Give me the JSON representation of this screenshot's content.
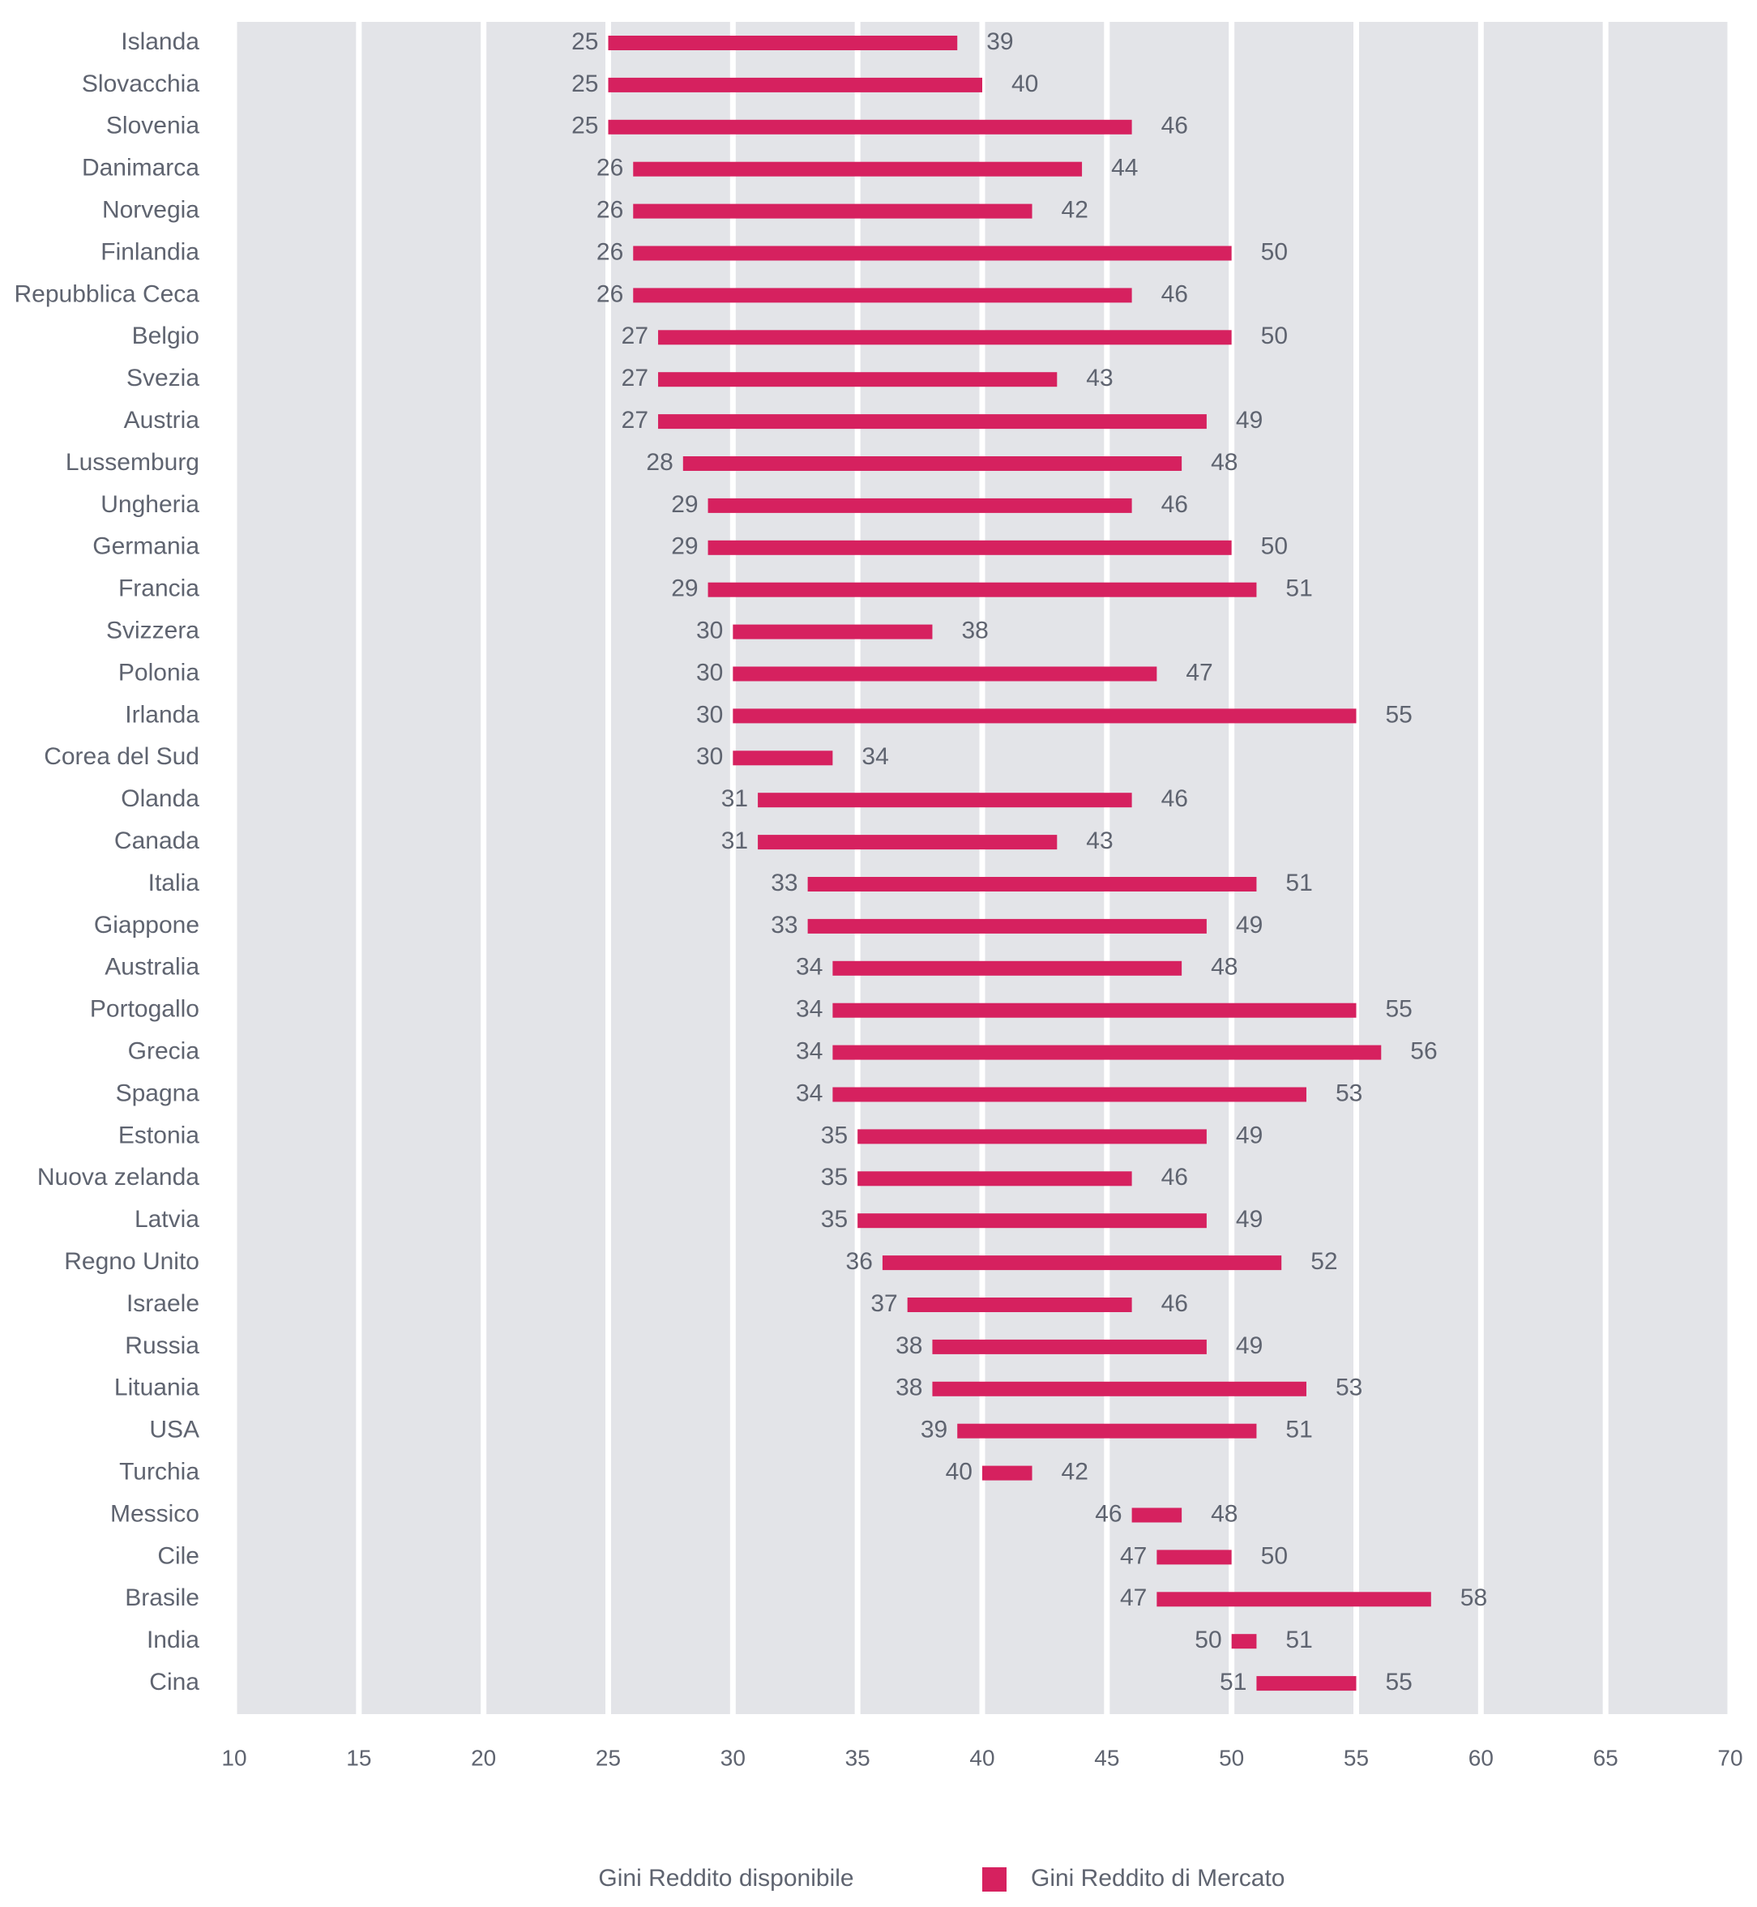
{
  "chart_data": {
    "type": "range-bar",
    "orientation": "horizontal",
    "categories": [
      "Islanda",
      "Slovacchia",
      "Slovenia",
      "Danimarca",
      "Norvegia",
      "Finlandia",
      "Repubblica Ceca",
      "Belgio",
      "Svezia",
      "Austria",
      "Lussemburg",
      "Ungheria",
      "Germania",
      "Francia",
      "Svizzera",
      "Polonia",
      "Irlanda",
      "Corea del Sud",
      "Olanda",
      "Canada",
      "Italia",
      "Giappone",
      "Australia",
      "Portogallo",
      "Grecia",
      "Spagna",
      "Estonia",
      "Nuova zelanda",
      "Latvia",
      "Regno Unito",
      "Israele",
      "Russia",
      "Lituania",
      "USA",
      "Turchia",
      "Messico",
      "Cile",
      "Brasile",
      "India",
      "Cina"
    ],
    "series": [
      {
        "name": "Gini Reddito disponibile",
        "values": [
          25,
          25,
          25,
          26,
          26,
          26,
          26,
          27,
          27,
          27,
          28,
          29,
          29,
          29,
          30,
          30,
          30,
          30,
          31,
          31,
          33,
          33,
          34,
          34,
          34,
          34,
          35,
          35,
          35,
          36,
          37,
          38,
          38,
          39,
          40,
          46,
          47,
          47,
          50,
          51
        ]
      },
      {
        "name": "Gini Reddito di Mercato",
        "color": "#d6215f",
        "values": [
          39,
          40,
          46,
          44,
          42,
          50,
          46,
          50,
          43,
          49,
          48,
          46,
          50,
          51,
          38,
          47,
          55,
          34,
          46,
          43,
          51,
          49,
          48,
          55,
          56,
          53,
          49,
          46,
          49,
          52,
          46,
          49,
          53,
          51,
          42,
          48,
          50,
          58,
          51,
          55
        ]
      }
    ],
    "xlim": [
      10,
      70
    ],
    "xticks": [
      10,
      15,
      20,
      25,
      30,
      35,
      40,
      45,
      50,
      55,
      60,
      65,
      70
    ],
    "grid": true,
    "plot_background": "#e3e4e8",
    "grid_color": "#ffffff"
  }
}
